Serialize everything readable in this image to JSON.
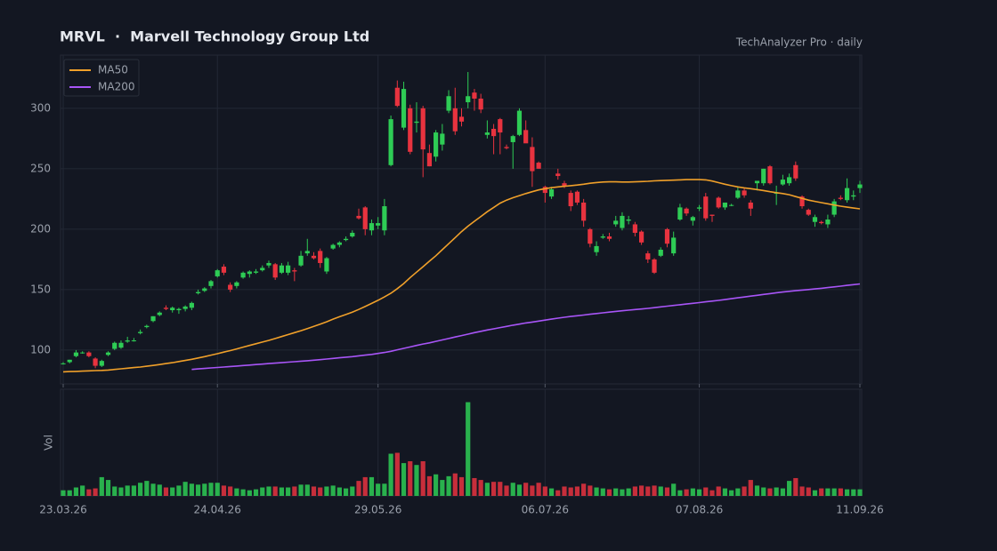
{
  "chart_data": {
    "type": "candlestick",
    "title": "MRVL  ·  Marvell Technology Group Ltd",
    "subtitle": "TechAnalyzer Pro · daily",
    "volume_label": "Vol",
    "up_color": "#2ecc55",
    "down_color": "#e8333f",
    "grid": true,
    "legend": "upper left",
    "ylim": [
      72,
      344
    ],
    "yticks": [
      100,
      150,
      200,
      250,
      300
    ],
    "volume_ylim": [
      0,
      110
    ],
    "categories": [
      "23.03.26",
      null,
      null,
      null,
      null,
      null,
      null,
      null,
      null,
      null,
      null,
      null,
      null,
      null,
      null,
      null,
      null,
      null,
      null,
      null,
      null,
      null,
      null,
      null,
      "24.04.26",
      null,
      null,
      null,
      null,
      null,
      null,
      null,
      null,
      null,
      null,
      null,
      null,
      null,
      null,
      null,
      null,
      null,
      null,
      null,
      null,
      null,
      null,
      null,
      null,
      "29.05.26",
      null,
      null,
      null,
      null,
      null,
      null,
      null,
      null,
      null,
      null,
      null,
      null,
      null,
      null,
      null,
      null,
      null,
      null,
      null,
      null,
      null,
      null,
      null,
      null,
      null,
      "06.07.26",
      null,
      null,
      null,
      null,
      null,
      null,
      null,
      null,
      null,
      null,
      null,
      null,
      null,
      null,
      null,
      null,
      null,
      null,
      null,
      null,
      null,
      null,
      null,
      "07.08.26",
      null,
      null,
      null,
      null,
      null,
      null,
      null,
      null,
      null,
      null,
      null,
      null,
      null,
      null,
      null,
      null,
      null,
      null,
      null,
      null,
      null,
      null,
      null,
      null,
      "11.09.26"
    ],
    "ohlc": [
      [
        89,
        90,
        88,
        89
      ],
      [
        90,
        92,
        89,
        92
      ],
      [
        95,
        100,
        94,
        98
      ],
      [
        98,
        99,
        97,
        98
      ],
      [
        98,
        99,
        94,
        95
      ],
      [
        93,
        94,
        85,
        87
      ],
      [
        87,
        92,
        86,
        91
      ],
      [
        96,
        99,
        95,
        98
      ],
      [
        101,
        107,
        100,
        106
      ],
      [
        102,
        108,
        101,
        106
      ],
      [
        107,
        111,
        106,
        108
      ],
      [
        108,
        110,
        107,
        108
      ],
      [
        114,
        117,
        113,
        115
      ],
      [
        119,
        121,
        118,
        120
      ],
      [
        124,
        128,
        123,
        128
      ],
      [
        129,
        132,
        128,
        131
      ],
      [
        135,
        137,
        133,
        134
      ],
      [
        133,
        136,
        131,
        135
      ],
      [
        133,
        135,
        130,
        134
      ],
      [
        134,
        137,
        132,
        136
      ],
      [
        135,
        140,
        133,
        139
      ],
      [
        147,
        150,
        146,
        148
      ],
      [
        149,
        152,
        148,
        151
      ],
      [
        153,
        158,
        151,
        157
      ],
      [
        161,
        167,
        160,
        166
      ],
      [
        169,
        171,
        162,
        164
      ],
      [
        154,
        156,
        148,
        150
      ],
      [
        153,
        157,
        151,
        156
      ],
      [
        160,
        165,
        159,
        164
      ],
      [
        163,
        166,
        160,
        165
      ],
      [
        164,
        167,
        163,
        165
      ],
      [
        166,
        170,
        165,
        168
      ],
      [
        170,
        174,
        168,
        172
      ],
      [
        171,
        172,
        158,
        160
      ],
      [
        164,
        172,
        163,
        170
      ],
      [
        164,
        173,
        162,
        170
      ],
      [
        166,
        168,
        157,
        165
      ],
      [
        170,
        182,
        169,
        178
      ],
      [
        180,
        192,
        178,
        182
      ],
      [
        178,
        181,
        175,
        176
      ],
      [
        182,
        184,
        168,
        172
      ],
      [
        165,
        177,
        163,
        176
      ],
      [
        184,
        188,
        183,
        187
      ],
      [
        187,
        190,
        185,
        189
      ],
      [
        191,
        194,
        190,
        192
      ],
      [
        194,
        199,
        193,
        197
      ],
      [
        211,
        217,
        208,
        209
      ],
      [
        218,
        219,
        195,
        200
      ],
      [
        199,
        208,
        195,
        205
      ],
      [
        203,
        210,
        200,
        205
      ],
      [
        199,
        225,
        195,
        219
      ],
      [
        253,
        294,
        252,
        291
      ],
      [
        317,
        323,
        301,
        302
      ],
      [
        284,
        322,
        282,
        316
      ],
      [
        300,
        303,
        262,
        264
      ],
      [
        288,
        305,
        280,
        289
      ],
      [
        300,
        302,
        243,
        266
      ],
      [
        263,
        270,
        252,
        252
      ],
      [
        260,
        282,
        256,
        280
      ],
      [
        270,
        287,
        265,
        279
      ],
      [
        298,
        315,
        296,
        310
      ],
      [
        300,
        317,
        278,
        281
      ],
      [
        293,
        300,
        285,
        289
      ],
      [
        305,
        330,
        300,
        310
      ],
      [
        313,
        316,
        298,
        308
      ],
      [
        308,
        312,
        296,
        299
      ],
      [
        278,
        290,
        275,
        280
      ],
      [
        283,
        287,
        262,
        277
      ],
      [
        291,
        292,
        262,
        280
      ],
      [
        268,
        270,
        266,
        267
      ],
      [
        272,
        278,
        250,
        277
      ],
      [
        278,
        300,
        277,
        298
      ],
      [
        282,
        290,
        272,
        271
      ],
      [
        268,
        276,
        235,
        248
      ],
      [
        255,
        256,
        250,
        250
      ],
      [
        235,
        236,
        222,
        230
      ],
      [
        227,
        235,
        225,
        233
      ],
      [
        246,
        250,
        241,
        244
      ],
      [
        238,
        240,
        234,
        236
      ],
      [
        230,
        232,
        215,
        219
      ],
      [
        231,
        232,
        220,
        222
      ],
      [
        222,
        225,
        202,
        207
      ],
      [
        200,
        201,
        185,
        188
      ],
      [
        181,
        190,
        178,
        186
      ],
      [
        193,
        196,
        192,
        194
      ],
      [
        194,
        197,
        190,
        192
      ],
      [
        204,
        211,
        202,
        207
      ],
      [
        201,
        214,
        199,
        211
      ],
      [
        207,
        211,
        204,
        208
      ],
      [
        204,
        206,
        194,
        197
      ],
      [
        198,
        199,
        187,
        189
      ],
      [
        180,
        182,
        172,
        175
      ],
      [
        175,
        176,
        163,
        164
      ],
      [
        178,
        185,
        177,
        183
      ],
      [
        200,
        201,
        185,
        188
      ],
      [
        180,
        198,
        178,
        193
      ],
      [
        208,
        221,
        207,
        218
      ],
      [
        217,
        218,
        211,
        213
      ],
      [
        207,
        211,
        203,
        210
      ],
      [
        217,
        220,
        215,
        218
      ],
      [
        227,
        230,
        207,
        209
      ],
      [
        212,
        212,
        206,
        211
      ],
      [
        226,
        227,
        217,
        218
      ],
      [
        218,
        222,
        216,
        222
      ],
      [
        220,
        221,
        219,
        220
      ],
      [
        226,
        235,
        225,
        232
      ],
      [
        232,
        234,
        226,
        228
      ],
      [
        222,
        224,
        211,
        217
      ],
      [
        238,
        240,
        232,
        240
      ],
      [
        238,
        250,
        236,
        250
      ],
      [
        252,
        253,
        237,
        238
      ],
      [
        230,
        236,
        220,
        230
      ],
      [
        237,
        245,
        236,
        241
      ],
      [
        238,
        246,
        236,
        243
      ],
      [
        253,
        256,
        240,
        242
      ],
      [
        227,
        228,
        217,
        219
      ],
      [
        216,
        217,
        211,
        212
      ],
      [
        206,
        212,
        202,
        210
      ],
      [
        206,
        207,
        204,
        205
      ],
      [
        204,
        212,
        201,
        208
      ],
      [
        212,
        225,
        210,
        223
      ],
      [
        226,
        228,
        224,
        225
      ],
      [
        224,
        242,
        222,
        234
      ],
      [
        227,
        232,
        224,
        228
      ],
      [
        234,
        240,
        230,
        237
      ]
    ],
    "volume": [
      6,
      6,
      9,
      11,
      7,
      8,
      20,
      17,
      10,
      9,
      11,
      11,
      14,
      16,
      13,
      12,
      9,
      9,
      11,
      15,
      13,
      12,
      13,
      14,
      14,
      11,
      10,
      8,
      7,
      6,
      7,
      9,
      10,
      10,
      9,
      9,
      10,
      12,
      12,
      10,
      9,
      10,
      11,
      9,
      8,
      10,
      16,
      20,
      20,
      13,
      13,
      45,
      46,
      35,
      37,
      33,
      37,
      21,
      23,
      17,
      21,
      24,
      20,
      100,
      19,
      17,
      14,
      15,
      15,
      11,
      14,
      12,
      14,
      11,
      14,
      10,
      8,
      6,
      10,
      9,
      10,
      13,
      11,
      9,
      8,
      7,
      8,
      7,
      8,
      10,
      11,
      10,
      11,
      10,
      9,
      13,
      6,
      7,
      8,
      7,
      9,
      6,
      10,
      8,
      6,
      8,
      10,
      17,
      11,
      9,
      8,
      9,
      8,
      16,
      19,
      10,
      9,
      6,
      8,
      8,
      8,
      8,
      7,
      7,
      7
    ],
    "series": [
      {
        "name": "MA50",
        "color": "#f0a02a",
        "values": [
          82,
          82.2,
          82.4,
          82.6,
          82.8,
          83,
          83.2,
          83.5,
          84,
          84.5,
          85,
          85.5,
          86,
          86.6,
          87.3,
          88,
          88.8,
          89.6,
          90.5,
          91.4,
          92.4,
          93.5,
          94.6,
          95.8,
          97,
          98.3,
          99.6,
          101,
          102.4,
          103.8,
          105.2,
          106.6,
          108,
          109.6,
          111.2,
          112.8,
          114.4,
          116,
          117.8,
          119.6,
          121.4,
          123.4,
          125.6,
          127.6,
          129.4,
          131.4,
          133.6,
          136,
          138.6,
          141.2,
          144,
          147,
          150.8,
          155,
          160,
          164.5,
          169,
          173.5,
          178,
          183,
          188,
          193,
          198,
          202.5,
          206.5,
          210.5,
          214.5,
          218,
          221.5,
          224,
          226,
          227.8,
          229.5,
          231,
          232.5,
          233.5,
          234.3,
          235,
          235.5,
          236,
          236.5,
          237.2,
          238,
          238.6,
          239,
          239.2,
          239.2,
          239,
          239,
          239.2,
          239.4,
          239.6,
          240,
          240.2,
          240.4,
          240.6,
          240.8,
          241,
          241,
          241,
          240.8,
          239.8,
          238.5,
          237.2,
          236,
          235,
          234.2,
          233.5,
          232.8,
          232,
          231,
          230.2,
          229.5,
          228.5,
          227,
          225.5,
          224,
          223,
          222,
          221,
          220,
          219,
          218.2,
          217.5,
          216.8
        ]
      },
      {
        "name": "MA200",
        "color": "#a855f7",
        "values": [
          null,
          null,
          null,
          null,
          null,
          null,
          null,
          null,
          null,
          null,
          null,
          null,
          null,
          null,
          null,
          null,
          null,
          null,
          null,
          null,
          84,
          84.4,
          84.8,
          85.2,
          85.6,
          86,
          86.4,
          86.8,
          87.2,
          87.6,
          88,
          88.4,
          88.8,
          89.2,
          89.6,
          90,
          90.4,
          90.8,
          91.2,
          91.6,
          92.1,
          92.6,
          93.1,
          93.6,
          94.1,
          94.6,
          95.2,
          95.8,
          96.4,
          97.2,
          98,
          99,
          100.2,
          101.4,
          102.6,
          103.8,
          105,
          106,
          107.2,
          108.4,
          109.6,
          110.8,
          112,
          113.2,
          114.4,
          115.5,
          116.6,
          117.6,
          118.6,
          119.6,
          120.6,
          121.5,
          122.4,
          123.2,
          124,
          124.8,
          125.6,
          126.4,
          127.1,
          127.8,
          128.4,
          129,
          129.6,
          130.2,
          130.8,
          131.4,
          132,
          132.5,
          133,
          133.5,
          134,
          134.5,
          135.1,
          135.7,
          136.3,
          136.9,
          137.5,
          138.1,
          138.7,
          139.3,
          139.9,
          140.5,
          141.1,
          141.8,
          142.5,
          143.2,
          143.9,
          144.6,
          145.3,
          146,
          146.7,
          147.4,
          148,
          148.6,
          149.1,
          149.6,
          150.1,
          150.6,
          151.1,
          151.7,
          152.3,
          152.9,
          153.5,
          154.1,
          154.7
        ]
      }
    ]
  }
}
